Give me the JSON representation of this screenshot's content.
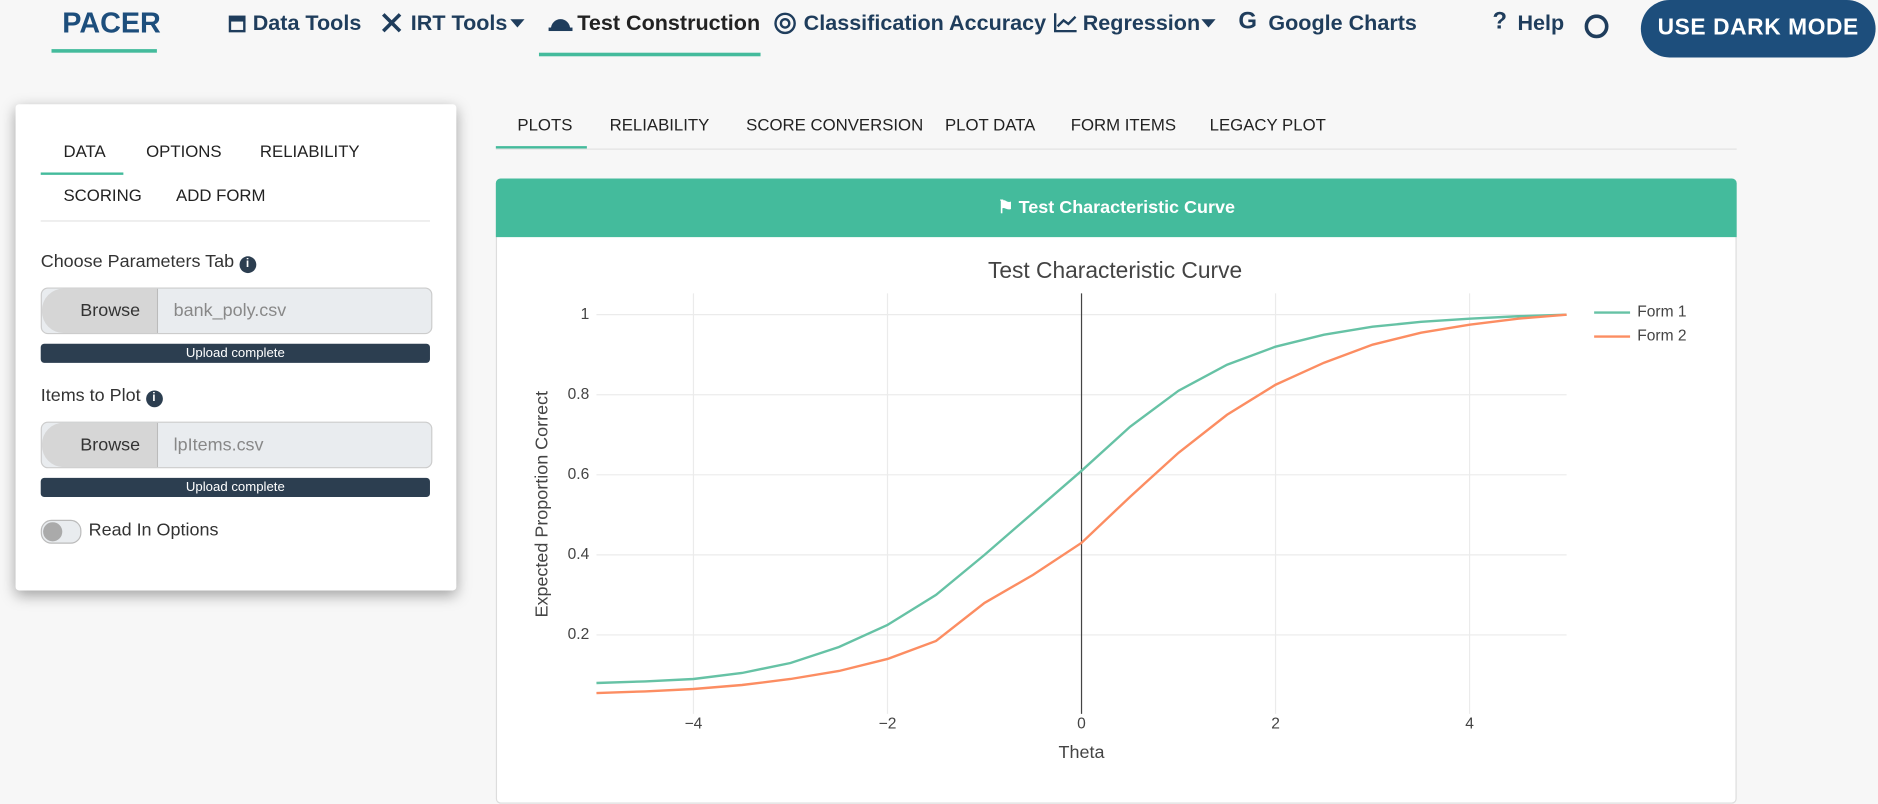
{
  "nav": {
    "brand": "PACER",
    "items": [
      "Data Tools",
      "IRT Tools",
      "Test Construction",
      "Classification Accuracy",
      "Regression",
      "Google Charts",
      "Help"
    ],
    "button": "USE DARK MODE"
  },
  "sidebar": {
    "tabs": [
      "DATA",
      "OPTIONS",
      "RELIABILITY",
      "SCORING",
      "ADD FORM"
    ],
    "fields": [
      {
        "label": "Choose Parameters Tab",
        "button": "Browse",
        "file": "bank_poly.csv",
        "status": "Upload complete"
      },
      {
        "label": "Items to Plot",
        "button": "Browse",
        "file": "lpItems.csv",
        "status": "Upload complete"
      }
    ],
    "toggle": "Read In Options"
  },
  "main_tabs": [
    "PLOTS",
    "RELIABILITY",
    "SCORE CONVERSION",
    "PLOT DATA",
    "FORM ITEMS",
    "LEGACY PLOT"
  ],
  "card_title": "Test Characteristic Curve",
  "chart_data": {
    "type": "line",
    "title": "Test Characteristic Curve",
    "x_label": "Theta",
    "y_label": "Expected Proportion Correct",
    "x": [
      -5,
      -4.5,
      -4,
      -3.5,
      -3,
      -2.5,
      -2,
      -1.5,
      -1,
      -0.5,
      0,
      0.5,
      1,
      1.5,
      2,
      2.5,
      3,
      3.5,
      4,
      4.5,
      5
    ],
    "series": [
      {
        "name": "Form 1",
        "color": "#66c2a5",
        "values": [
          0.08,
          0.084,
          0.09,
          0.105,
          0.13,
          0.17,
          0.225,
          0.3,
          0.4,
          0.505,
          0.61,
          0.72,
          0.81,
          0.875,
          0.92,
          0.95,
          0.97,
          0.982,
          0.99,
          0.996,
          1
        ]
      },
      {
        "name": "Form 2",
        "color": "#fc8d62",
        "values": [
          0.055,
          0.059,
          0.065,
          0.075,
          0.09,
          0.11,
          0.14,
          0.185,
          0.28,
          0.35,
          0.43,
          0.545,
          0.655,
          0.75,
          0.825,
          0.88,
          0.925,
          0.955,
          0.975,
          0.99,
          1
        ]
      }
    ],
    "xlim": [
      -5,
      5
    ],
    "xticks": [
      {
        "value": -4,
        "label": "−4"
      },
      {
        "value": -2,
        "label": "−2"
      },
      0,
      2,
      4
    ],
    "ylim": [
      0.003,
      1.053
    ],
    "yticks": [
      0.2,
      0.4,
      0.6,
      0.8,
      1
    ],
    "grid": true,
    "x_zeroline": true,
    "legend": "top-right"
  }
}
